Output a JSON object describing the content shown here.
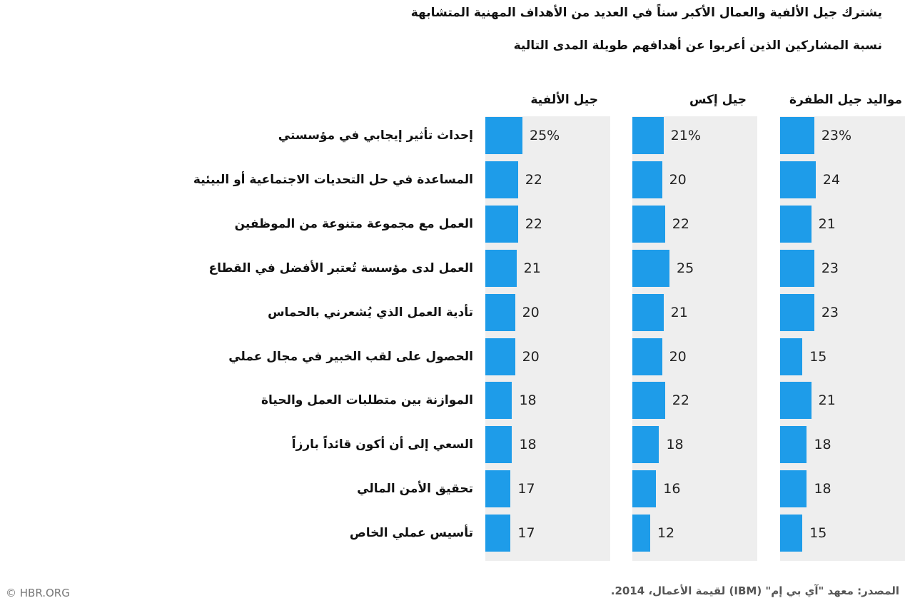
{
  "title": "يشترك جيل الألفية والعمال الأكبر سناً في العديد من الأهداف المهنية المتشابهة",
  "subtitle": "نسبة المشاركين الذين أعربوا عن أهدافهم طويلة المدى التالية",
  "source": "المصدر: معهد \"آي بي إم\" (IBM) لقيمة الأعمال، 2014.",
  "credit": "© HBR.ORG",
  "colors": {
    "bar": "#1e9ce9",
    "panel": "#eeeeee"
  },
  "chart_data": {
    "type": "bar",
    "orientation": "horizontal",
    "value_unit": "%",
    "categories": [
      "إحداث تأثير إيجابي في مؤسستي",
      "المساعدة في حل التحديات الاجتماعية أو البيئية",
      "العمل مع مجموعة متنوعة من الموظفين",
      "العمل لدى مؤسسة تُعتبر الأفضل في القطاع",
      "تأدية العمل الذي يُشعرني بالحماس",
      "الحصول على لقب الخبير في مجال عملي",
      "الموازنة بين متطلبات العمل والحياة",
      "السعي إلى أن أكون قائداً بارزاً",
      "تحقيق الأمن المالي",
      "تأسيس عملي الخاص"
    ],
    "series": [
      {
        "name": "جيل الألفية",
        "values": [
          25,
          22,
          22,
          21,
          20,
          20,
          18,
          18,
          17,
          17
        ],
        "labels": [
          "25%",
          "22",
          "22",
          "21",
          "20",
          "20",
          "18",
          "18",
          "17",
          "17"
        ]
      },
      {
        "name": "جيل  إكس",
        "values": [
          21,
          20,
          22,
          25,
          21,
          20,
          22,
          18,
          16,
          12
        ],
        "labels": [
          "21%",
          "20",
          "22",
          "25",
          "21",
          "20",
          "22",
          "18",
          "16",
          "12"
        ]
      },
      {
        "name": "مواليد جيل الطفرة",
        "values": [
          23,
          24,
          21,
          23,
          23,
          15,
          21,
          18,
          18,
          15
        ],
        "labels": [
          "23%",
          "24",
          "21",
          "23",
          "23",
          "15",
          "21",
          "18",
          "18",
          "15"
        ]
      }
    ]
  }
}
